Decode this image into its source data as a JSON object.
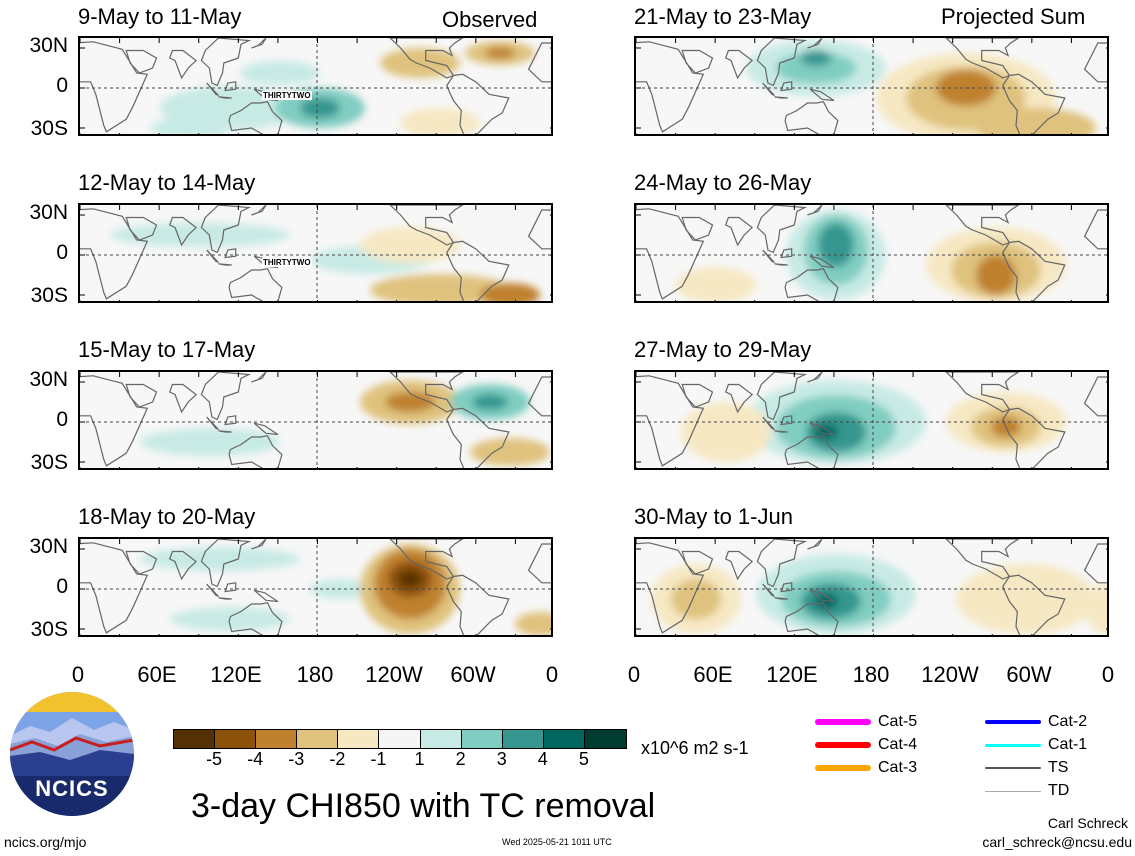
{
  "labels": {
    "observed": "Observed",
    "projected": "Projected Sum"
  },
  "lat_labels": [
    "30N",
    "0",
    "30S"
  ],
  "lon_labels": [
    "0",
    "60E",
    "120E",
    "180",
    "120W",
    "60W",
    "0"
  ],
  "storm_label": "THIRTYTWO",
  "panels_left": [
    {
      "title": "9-May to 11-May",
      "storm": true
    },
    {
      "title": "12-May to 14-May",
      "storm": true
    },
    {
      "title": "15-May to 17-May",
      "storm": false
    },
    {
      "title": "18-May to 20-May",
      "storm": false
    }
  ],
  "panels_right": [
    {
      "title": "21-May to 23-May"
    },
    {
      "title": "24-May to 26-May"
    },
    {
      "title": "27-May to 29-May"
    },
    {
      "title": "30-May to 1-Jun"
    }
  ],
  "colorbar": {
    "colors": [
      "#543005",
      "#8c510a",
      "#bf812d",
      "#dfc27d",
      "#f6e8c3",
      "#f5f5f5",
      "#c7eae5",
      "#80cdc1",
      "#35978f",
      "#01665e",
      "#003c30"
    ],
    "labels": [
      "-5",
      "-4",
      "-3",
      "-2",
      "-1",
      "1",
      "2",
      "3",
      "4",
      "5"
    ],
    "units": "x10^6 m2 s-1"
  },
  "legend": [
    {
      "label": "Cat-5",
      "color": "#ff00ff",
      "weight": 6
    },
    {
      "label": "Cat-4",
      "color": "#ff0000",
      "weight": 6
    },
    {
      "label": "Cat-3",
      "color": "#ffa500",
      "weight": 6
    },
    {
      "label": "Cat-2",
      "color": "#0000ff",
      "weight": 4
    },
    {
      "label": "Cat-1",
      "color": "#00ffff",
      "weight": 3
    },
    {
      "label": "TS",
      "color": "#555555",
      "weight": 2
    },
    {
      "label": "TD",
      "color": "#aaaaaa",
      "weight": 1
    }
  ],
  "logo_text": "NCICS",
  "main_title": "3-day CHI850 with TC removal",
  "website": "ncics.org/mjo",
  "timestamp": "Wed 2025-05-21 1011 UTC",
  "author": "Carl Schreck",
  "email": "carl_schreck@ncsu.edu"
}
